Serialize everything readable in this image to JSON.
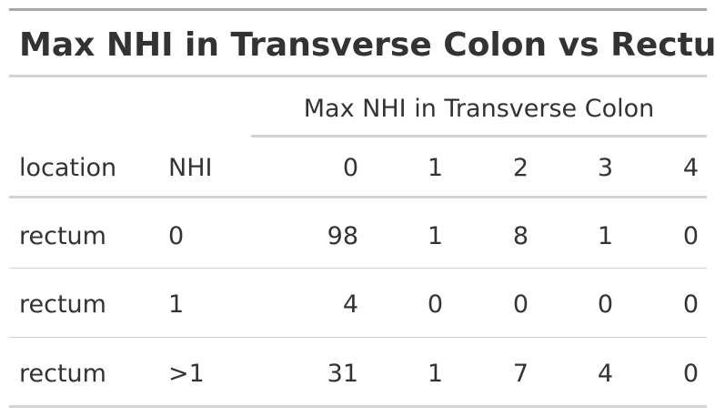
{
  "table": {
    "title": "Max NHI in Transverse Colon vs Rectum",
    "spanner": "Max NHI in Transverse Colon",
    "columns": [
      "location",
      "NHI",
      "0",
      "1",
      "2",
      "3",
      "4"
    ],
    "rows": [
      [
        "rectum",
        "0",
        "98",
        "1",
        "8",
        "1",
        "0"
      ],
      [
        "rectum",
        "1",
        "4",
        "0",
        "0",
        "0",
        "0"
      ],
      [
        "rectum",
        ">1",
        "31",
        "1",
        "7",
        "4",
        "0"
      ]
    ]
  }
}
